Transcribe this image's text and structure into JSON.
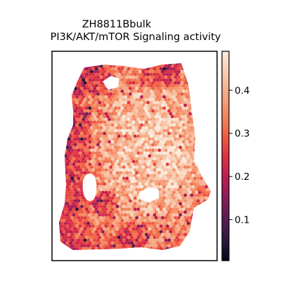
{
  "chart_data": {
    "type": "heatmap",
    "title_line1": "ZH8811Bbulk",
    "title_line2": "PI3K/AKT/mTOR Signaling activity",
    "colorbar": {
      "min": 0.005,
      "max": 0.49,
      "ticks": [
        0.1,
        0.2,
        0.3,
        0.4
      ],
      "tick_labels": [
        "0.1",
        "0.2",
        "0.3",
        "0.4"
      ],
      "colormap": "rocket",
      "colors": [
        "#03051a",
        "#2b1a3c",
        "#5b1e51",
        "#8c1d59",
        "#be1e52",
        "#e13342",
        "#f06043",
        "#f58860",
        "#f6ab87",
        "#f8ccb0",
        "#faebdd"
      ]
    },
    "spot_values_description_free": true,
    "axes": {
      "grid": false,
      "ticks_visible": false
    }
  }
}
